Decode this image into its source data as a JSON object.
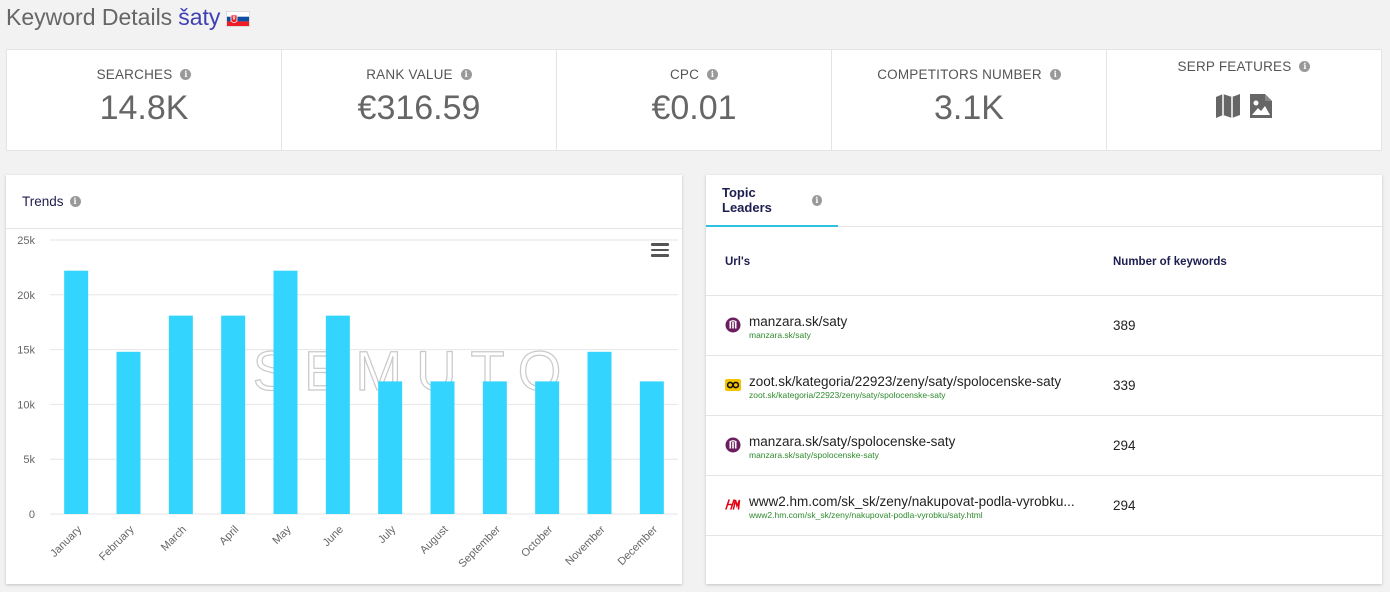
{
  "header": {
    "title_prefix": "Keyword Details",
    "keyword": "šaty",
    "flag": "slovakia-flag"
  },
  "stats": {
    "searches": {
      "label": "SEARCHES",
      "value": "14.8K"
    },
    "rank_value": {
      "label": "RANK VALUE",
      "value": "€316.59"
    },
    "cpc": {
      "label": "CPC",
      "value": "€0.01"
    },
    "competitors": {
      "label": "COMPETITORS NUMBER",
      "value": "3.1K"
    },
    "serp": {
      "label": "SERP FEATURES",
      "icons": [
        "map-icon",
        "image-icon"
      ]
    }
  },
  "info_glyph": "i",
  "trends": {
    "title": "Trends",
    "watermark": "SEMUTO"
  },
  "chart_data": {
    "type": "bar",
    "categories": [
      "January",
      "February",
      "March",
      "April",
      "May",
      "June",
      "July",
      "August",
      "September",
      "October",
      "November",
      "December"
    ],
    "values": [
      22200,
      14800,
      18100,
      18100,
      22200,
      18100,
      12100,
      12100,
      12100,
      12100,
      14800,
      12100
    ],
    "ylim": [
      0,
      25000
    ],
    "yticks": [
      "0",
      "5k",
      "10k",
      "15k",
      "20k",
      "25k"
    ],
    "grid": true,
    "color": "#33d5ff"
  },
  "leaders": {
    "tab": "Topic Leaders",
    "col_url": "Url's",
    "col_num": "Number of keywords",
    "rows": [
      {
        "url": "manzara.sk/saty",
        "sub": "manzara.sk/saty",
        "num": "389",
        "icon": "manzara-icon"
      },
      {
        "url": "zoot.sk/kategoria/22923/zeny/saty/spolocenske-saty",
        "sub": "zoot.sk/kategoria/22923/zeny/saty/spolocenske-saty",
        "num": "339",
        "icon": "zoot-icon"
      },
      {
        "url": "manzara.sk/saty/spolocenske-saty",
        "sub": "manzara.sk/saty/spolocenske-saty",
        "num": "294",
        "icon": "manzara-icon"
      },
      {
        "url": "www2.hm.com/sk_sk/zeny/nakupovat-podla-vyrobku...",
        "sub": "www2.hm.com/sk_sk/zeny/nakupovat-podla-vyrobku/saty.html",
        "num": "294",
        "icon": "hm-icon"
      }
    ]
  }
}
